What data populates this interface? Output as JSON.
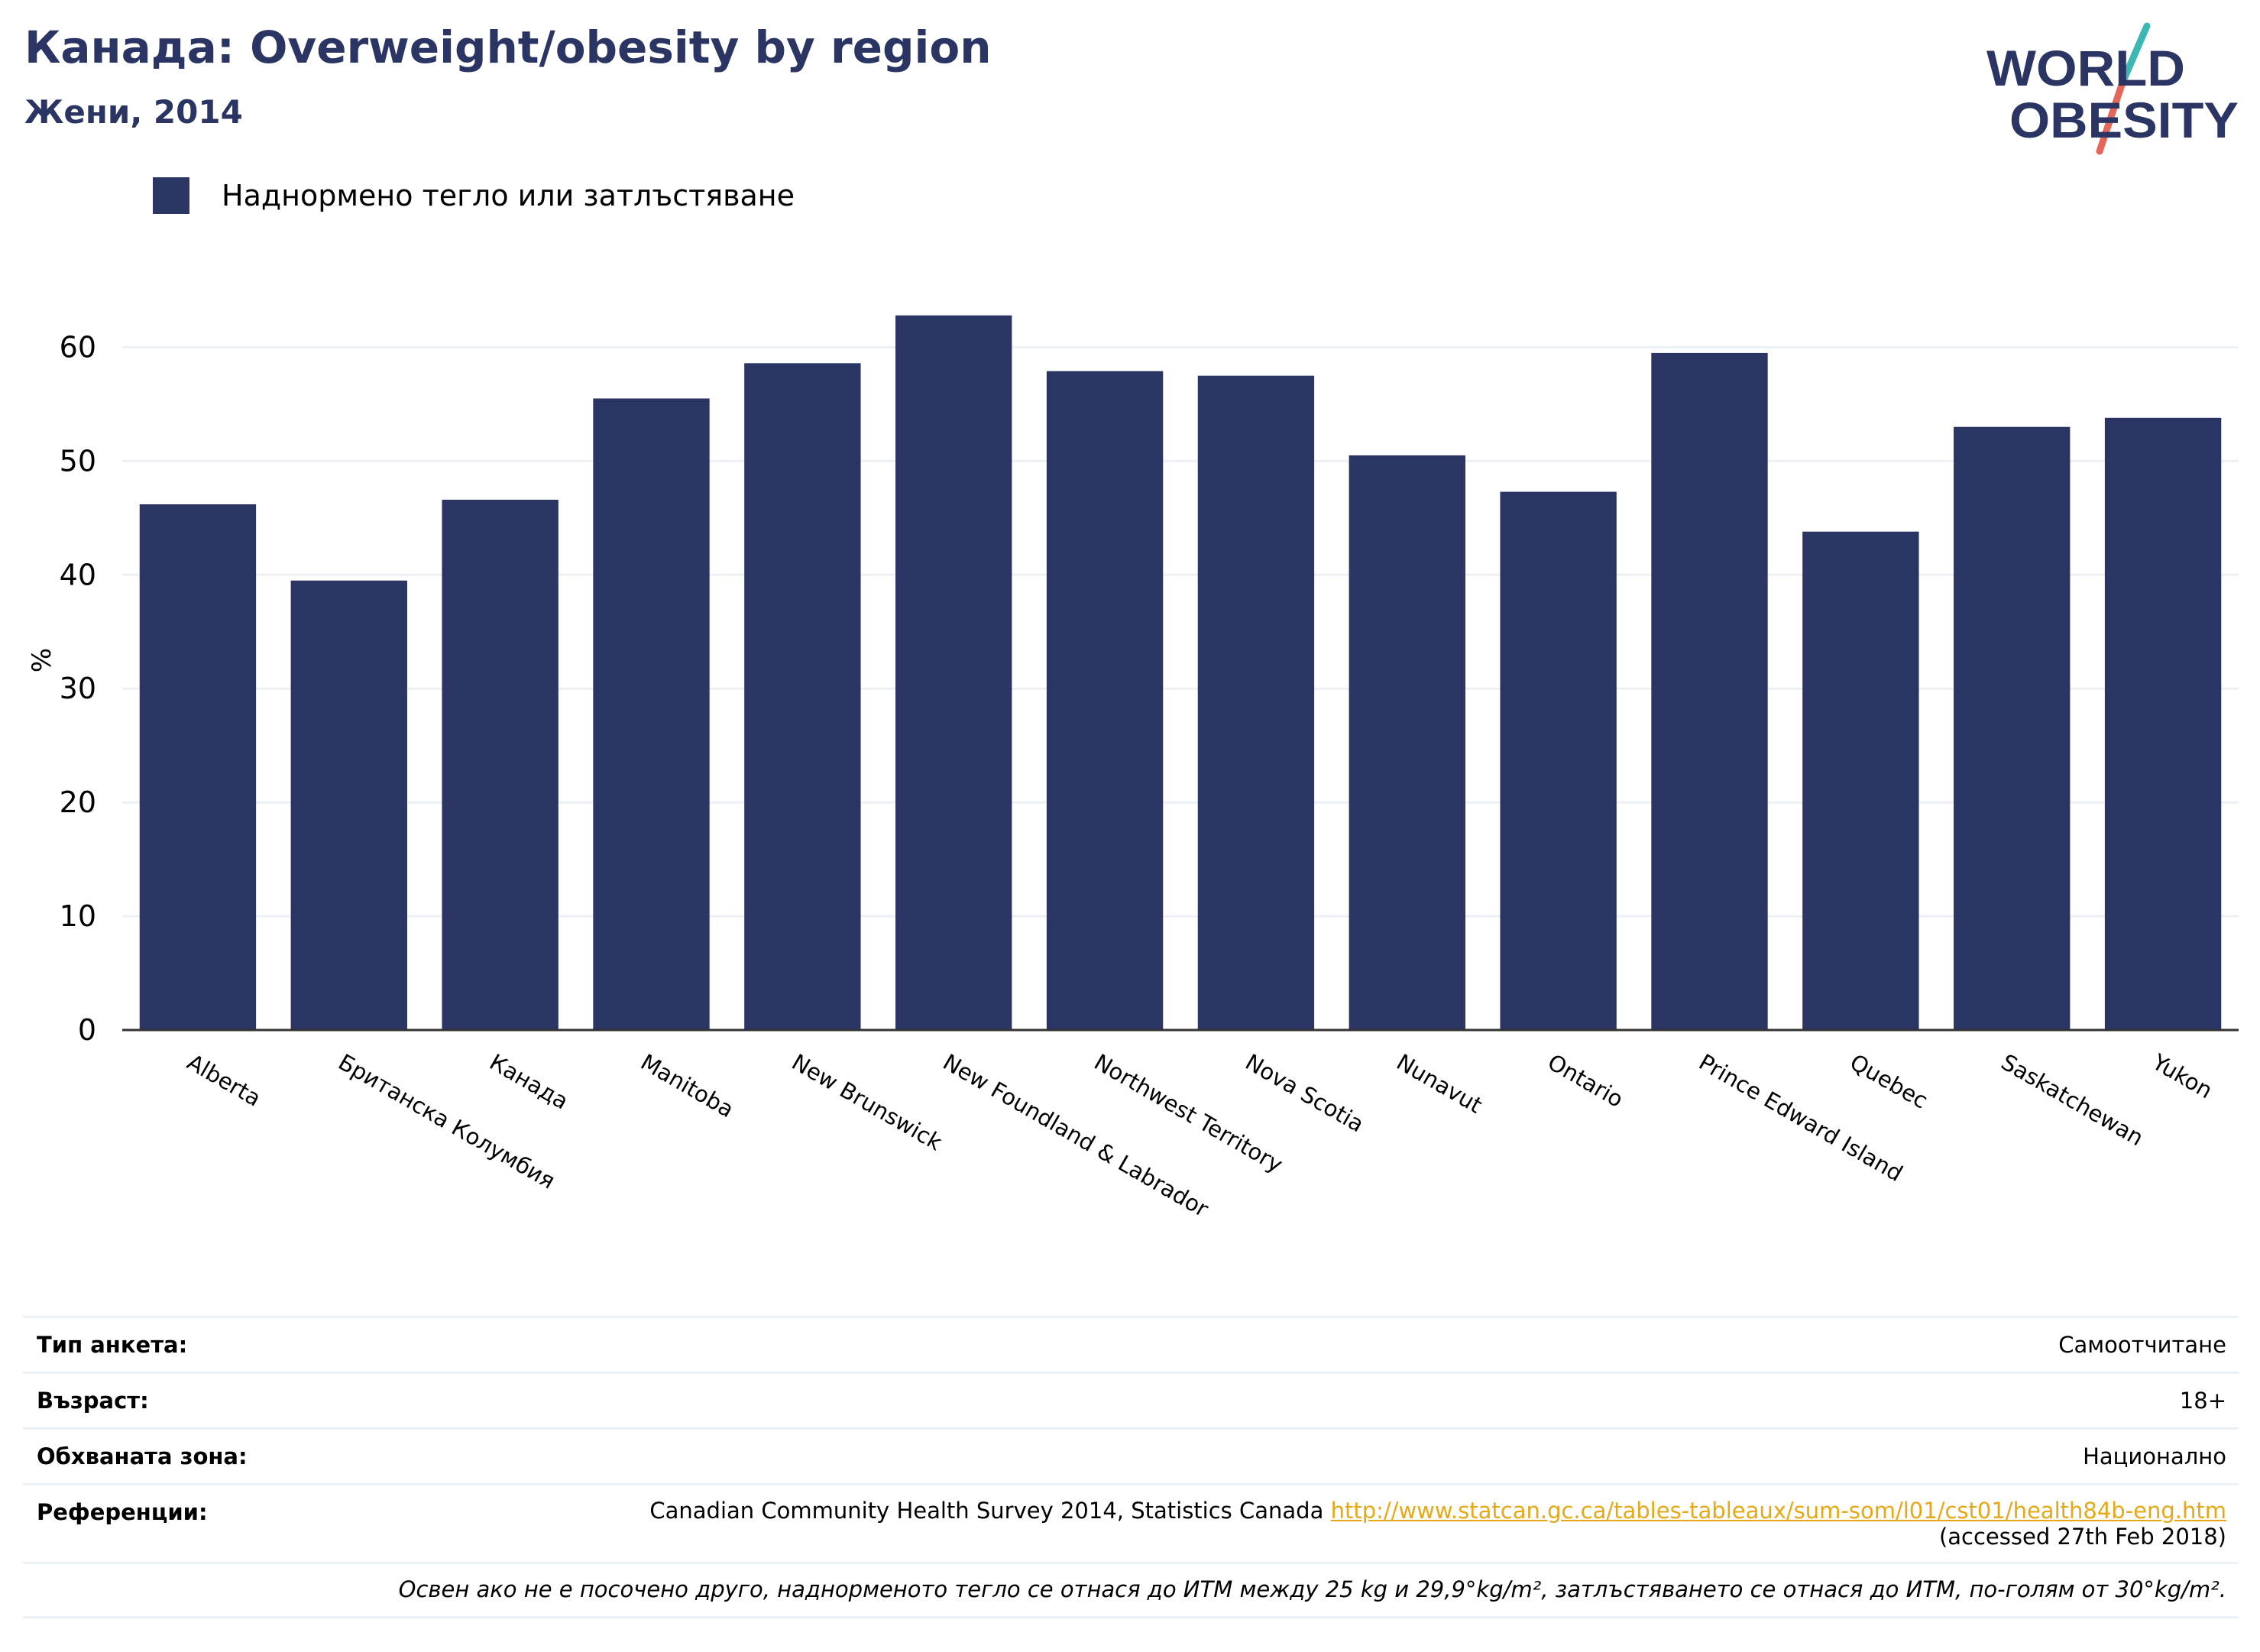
{
  "header": {
    "title": "Канада: Overweight/obesity by region",
    "subtitle": "Жени, 2014"
  },
  "logo": {
    "line1": "WORLD",
    "line2": "OBESITY",
    "colors": {
      "text": "#2b3563",
      "slash_top": "#3cb7b3",
      "slash_bottom": "#e5675a"
    }
  },
  "legend": {
    "label": "Наднормено тегло или затлъстяване"
  },
  "colors": {
    "bar": "#2b3563",
    "grid": "#edf0f5",
    "axis": "#333333",
    "link": "#e6a817"
  },
  "chart_data": {
    "type": "bar",
    "title": "Канада: Overweight/obesity by region",
    "subtitle": "Жени, 2014",
    "xlabel": "",
    "ylabel": "%",
    "ylim": [
      0,
      65
    ],
    "yticks": [
      0,
      10,
      20,
      30,
      40,
      50,
      60
    ],
    "grid": true,
    "legend_position": "top-left",
    "categories": [
      "Alberta",
      "Британска Колумбия",
      "Канада",
      "Manitoba",
      "New Brunswick",
      "New Foundland & Labrador",
      "Northwest Territory",
      "Nova Scotia",
      "Nunavut",
      "Ontario",
      "Prince Edward Island",
      "Quebec",
      "Saskatchewan",
      "Yukon"
    ],
    "series": [
      {
        "name": "Наднормено тегло или затлъстяване",
        "values": [
          46.2,
          39.5,
          46.6,
          55.5,
          58.6,
          62.8,
          57.9,
          57.5,
          50.5,
          47.3,
          59.5,
          43.8,
          53.0,
          53.8
        ]
      }
    ]
  },
  "info": {
    "survey_type_label": "Тип анкета:",
    "survey_type_value": "Самоотчитане",
    "age_label": "Възраст:",
    "age_value": "18+",
    "area_label": "Обхваната зона:",
    "area_value": "Национално",
    "references_label": "Референции:",
    "references_text": "Canadian Community Health Survey 2014, Statistics Canada ",
    "references_link": "http://www.statcan.gc.ca/tables-tableaux/sum-som/l01/cst01/health84b-eng.htm",
    "references_accessed": "(accessed 27th Feb 2018)",
    "note": "Освен ако не е посочено друго, наднорменото тегло се отнася до ИТМ между 25 kg и 29,9°kg/m², затлъстяването се отнася до ИТМ, по-голям от 30°kg/m²."
  }
}
